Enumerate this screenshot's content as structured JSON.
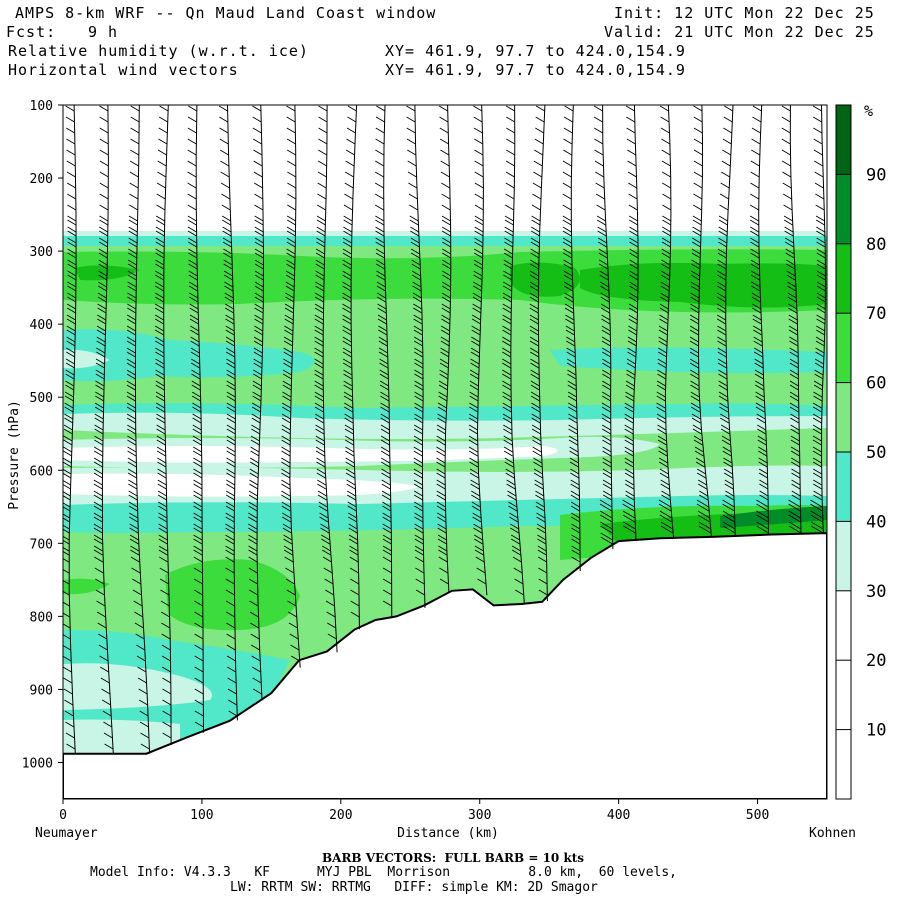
{
  "header": {
    "title": "AMPS 8-km WRF -- Qn Maud Land Coast window",
    "init": "Init: 12 UTC Mon 22 Dec 25",
    "fcst_label": "Fcst:",
    "fcst_value": "9 h",
    "valid": "Valid: 21 UTC Mon 22 Dec 25",
    "field1": "Relative humidity (w.r.t. ice)",
    "field2": "Horizontal wind vectors",
    "xy1": "XY= 461.9, 97.7 to 424.0,154.9",
    "xy2": "XY= 461.9, 97.7 to 424.0,154.9"
  },
  "footer": {
    "barb_note": "BARB VECTORS:  FULL BARB = 10 kts",
    "model_line1": "Model Info: V4.3.3   KF      MYJ PBL  Morrison          8.0 km,  60 levels,",
    "model_line2": "LW: RRTM SW: RRTMG   DIFF: simple KM: 2D Smagor"
  },
  "chart_data": {
    "type": "heatmap",
    "title": "Relative humidity (w.r.t. ice) cross-section",
    "xlabel": "Distance (km)",
    "ylabel": "Pressure (hPa)",
    "xlim": [
      0,
      550
    ],
    "ylim": [
      1050,
      100
    ],
    "x_ticks": [
      0,
      100,
      200,
      300,
      400,
      500
    ],
    "y_ticks": [
      100,
      200,
      300,
      400,
      500,
      600,
      700,
      800,
      900,
      1000
    ],
    "x_start_label": "Neumayer",
    "x_end_label": "Kohnen",
    "colorbar": {
      "unit": "%",
      "levels": [
        10,
        20,
        30,
        40,
        50,
        60,
        70,
        80,
        90
      ],
      "colors": [
        "#ffffff",
        "#ffffff",
        "#ffffff",
        "#c8f5e6",
        "#50e8c8",
        "#80e880",
        "#3cdc3c",
        "#14be14",
        "#008c28",
        "#006414"
      ]
    },
    "terrain_km": [
      0,
      30,
      60,
      90,
      120,
      150,
      170,
      190,
      210,
      225,
      240,
      260,
      280,
      295,
      310,
      330,
      345,
      360,
      380,
      400,
      430,
      470,
      510,
      550
    ],
    "terrain_hpa": [
      988,
      988,
      988,
      965,
      943,
      905,
      860,
      848,
      818,
      805,
      800,
      785,
      765,
      763,
      785,
      783,
      780,
      750,
      720,
      697,
      693,
      691,
      688,
      686
    ]
  }
}
